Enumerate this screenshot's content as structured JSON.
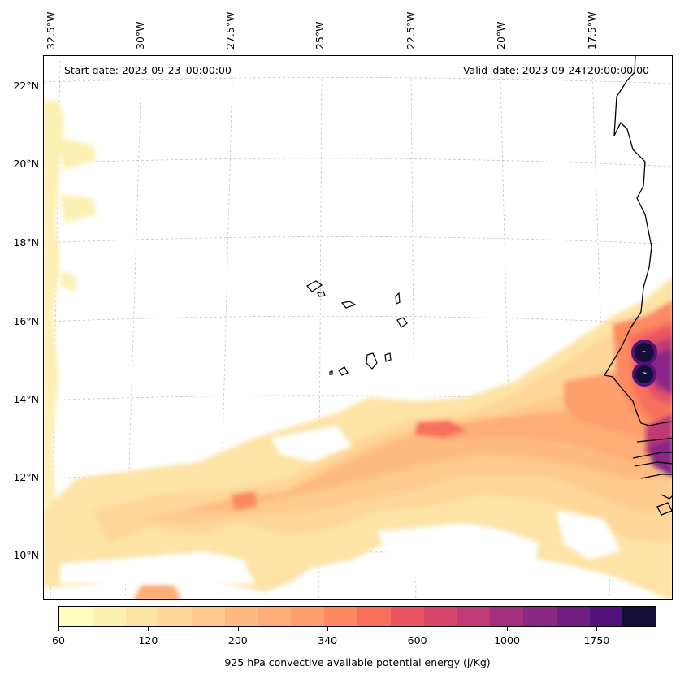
{
  "map": {
    "start_date": "Start date: 2023-09-23_00:00:00",
    "valid_date": "Valid_date: 2023-09-24T20:00:00.00",
    "longitude_labels": [
      "32.5°W",
      "30°W",
      "27.5°W",
      "25°W",
      "22.5°W",
      "20°W",
      "17.5°W"
    ],
    "latitude_labels": [
      "22°N",
      "20°N",
      "18°N",
      "16°N",
      "14°N",
      "12°N",
      "10°N"
    ],
    "field": "925 hPa convective available potential energy",
    "region": "Eastern tropical Atlantic, Cabo Verde islands and West African coast"
  },
  "colorbar": {
    "label": "925 hPa convective available potential energy (j/Kg)",
    "tick_labels": [
      "60",
      "120",
      "200",
      "340",
      "600",
      "1000",
      "1750"
    ],
    "colors": [
      "#fcfdbf",
      "#fcf0b2",
      "#fde3a6",
      "#fed799",
      "#feca8d",
      "#febb81",
      "#fead77",
      "#fe9f6d",
      "#fc8961",
      "#f7705c",
      "#e95462",
      "#d6456c",
      "#c03a76",
      "#a3307e",
      "#8a2885",
      "#701f81",
      "#51127c",
      "#150e37"
    ]
  }
}
